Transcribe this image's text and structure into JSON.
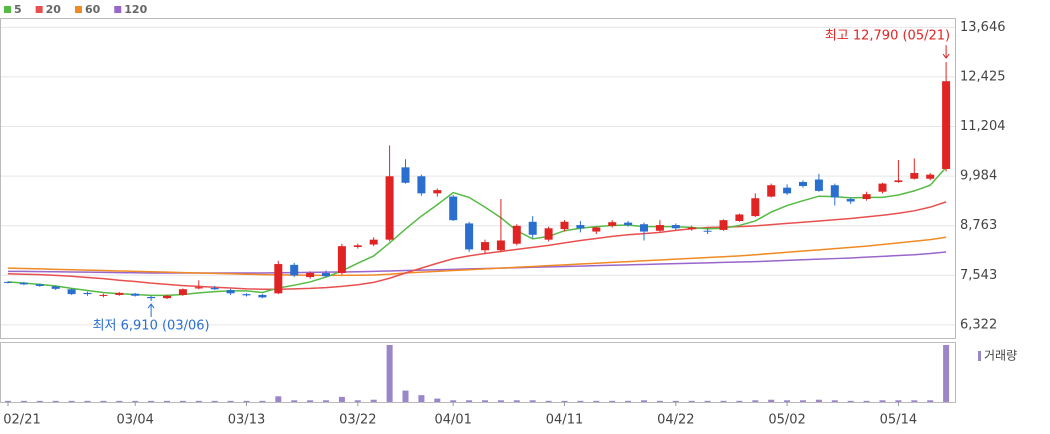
{
  "chart_data": {
    "type": "candlestick",
    "categories": [
      "02/21",
      null,
      null,
      null,
      null,
      null,
      null,
      null,
      "03/04",
      null,
      null,
      null,
      null,
      null,
      null,
      "03/13",
      null,
      null,
      null,
      null,
      null,
      null,
      "03/22",
      null,
      null,
      null,
      null,
      null,
      "04/01",
      null,
      null,
      null,
      null,
      null,
      null,
      "04/11",
      null,
      null,
      null,
      null,
      null,
      null,
      "04/22",
      null,
      null,
      null,
      null,
      null,
      null,
      "05/02",
      null,
      null,
      null,
      null,
      null,
      null,
      "05/14",
      null,
      null,
      null
    ],
    "open": [
      7380,
      7360,
      7320,
      7270,
      7200,
      7110,
      7040,
      7060,
      7090,
      7010,
      6980,
      7060,
      7220,
      7230,
      7180,
      7080,
      7060,
      7100,
      7800,
      7500,
      7600,
      7600,
      8240,
      8300,
      8420,
      10200,
      9980,
      9560,
      9480,
      8820,
      8160,
      8160,
      8320,
      8860,
      8420,
      8680,
      8780,
      8620,
      8760,
      8840,
      8800,
      8640,
      8780,
      8680,
      8640,
      8660,
      8880,
      9000,
      9480,
      9700,
      9840,
      9900,
      9760,
      9420,
      9420,
      9600,
      9840,
      9920,
      9920,
      10160
    ],
    "high": [
      7400,
      7380,
      7340,
      7290,
      7220,
      7140,
      7090,
      7130,
      7110,
      7040,
      7060,
      7220,
      7420,
      7280,
      7210,
      7100,
      7080,
      7900,
      7850,
      7640,
      7660,
      8320,
      8320,
      8480,
      10740,
      10400,
      10020,
      9680,
      9520,
      8860,
      8420,
      9420,
      8800,
      9000,
      8740,
      8900,
      8880,
      8740,
      8900,
      8880,
      8840,
      8900,
      8820,
      8760,
      8700,
      8920,
      9060,
      9560,
      9800,
      9780,
      9880,
      10040,
      9800,
      9460,
      9600,
      9820,
      10380,
      10420,
      10060,
      12790
    ],
    "low": [
      7340,
      7300,
      7260,
      7180,
      7060,
      7040,
      7000,
      7040,
      7020,
      6910,
      6960,
      7040,
      7200,
      7180,
      7060,
      7020,
      6980,
      7080,
      7500,
      7460,
      7500,
      7560,
      8200,
      8260,
      8380,
      9800,
      9500,
      9480,
      8880,
      8120,
      8080,
      8120,
      8280,
      8460,
      8380,
      8620,
      8600,
      8560,
      8720,
      8740,
      8400,
      8620,
      8660,
      8640,
      8560,
      8640,
      8860,
      8980,
      9460,
      9520,
      9700,
      9600,
      9260,
      9300,
      9380,
      9560,
      9820,
      9900,
      9880,
      10100
    ],
    "close": [
      7370,
      7320,
      7280,
      7210,
      7080,
      7080,
      7060,
      7110,
      7040,
      6980,
      7040,
      7200,
      7250,
      7200,
      7100,
      7050,
      7000,
      7820,
      7540,
      7600,
      7520,
      8260,
      8280,
      8420,
      9980,
      9820,
      9560,
      9640,
      8900,
      8180,
      8360,
      8400,
      8760,
      8540,
      8700,
      8860,
      8700,
      8720,
      8850,
      8780,
      8620,
      8780,
      8700,
      8720,
      8620,
      8900,
      9040,
      9440,
      9760,
      9560,
      9740,
      9620,
      9460,
      9360,
      9540,
      9800,
      9880,
      10060,
      10020,
      12320
    ],
    "up_color": "#e02424",
    "down_color": "#2a6fd0",
    "series": [
      {
        "name": "5",
        "color": "#55bb44",
        "values": [
          7380,
          7350,
          7320,
          7280,
          7220,
          7170,
          7120,
          7090,
          7070,
          7050,
          7050,
          7070,
          7110,
          7140,
          7160,
          7160,
          7120,
          7230,
          7300,
          7380,
          7500,
          7650,
          7840,
          8020,
          8340,
          8680,
          9000,
          9280,
          9580,
          9460,
          9220,
          8960,
          8640,
          8440,
          8500,
          8640,
          8700,
          8740,
          8770,
          8780,
          8740,
          8740,
          8740,
          8720,
          8690,
          8700,
          8770,
          8880,
          9100,
          9260,
          9380,
          9490,
          9480,
          9450,
          9460,
          9460,
          9520,
          9620,
          9760,
          10200
        ]
      },
      {
        "name": "20",
        "color": "#e85050",
        "values": [
          7580,
          7570,
          7560,
          7540,
          7520,
          7490,
          7460,
          7420,
          7390,
          7350,
          7320,
          7290,
          7270,
          7250,
          7230,
          7210,
          7200,
          7200,
          7210,
          7220,
          7240,
          7270,
          7310,
          7370,
          7470,
          7600,
          7720,
          7840,
          7950,
          8020,
          8080,
          8130,
          8180,
          8230,
          8280,
          8340,
          8400,
          8450,
          8500,
          8540,
          8570,
          8600,
          8650,
          8690,
          8720,
          8730,
          8740,
          8760,
          8790,
          8820,
          8850,
          8880,
          8910,
          8940,
          8980,
          9020,
          9070,
          9130,
          9220,
          9350
        ]
      },
      {
        "name": "60",
        "color": "#f08a24",
        "values": [
          7720,
          7710,
          7700,
          7690,
          7680,
          7670,
          7660,
          7650,
          7640,
          7630,
          7620,
          7610,
          7600,
          7590,
          7580,
          7570,
          7560,
          7555,
          7550,
          7545,
          7540,
          7540,
          7545,
          7550,
          7570,
          7600,
          7620,
          7640,
          7660,
          7680,
          7700,
          7720,
          7740,
          7760,
          7780,
          7800,
          7820,
          7840,
          7860,
          7880,
          7900,
          7920,
          7940,
          7960,
          7980,
          8000,
          8020,
          8050,
          8080,
          8110,
          8140,
          8170,
          8200,
          8230,
          8260,
          8300,
          8340,
          8380,
          8420,
          8480
        ]
      },
      {
        "name": "120",
        "color": "#9966cc",
        "values": [
          7640,
          7640,
          7635,
          7630,
          7625,
          7620,
          7615,
          7610,
          7605,
          7600,
          7600,
          7600,
          7600,
          7600,
          7600,
          7600,
          7600,
          7605,
          7610,
          7615,
          7620,
          7625,
          7630,
          7640,
          7650,
          7660,
          7670,
          7680,
          7690,
          7700,
          7710,
          7720,
          7730,
          7740,
          7750,
          7760,
          7770,
          7780,
          7790,
          7800,
          7810,
          7820,
          7830,
          7840,
          7850,
          7860,
          7870,
          7880,
          7895,
          7910,
          7925,
          7940,
          7955,
          7970,
          7990,
          8010,
          8030,
          8050,
          8080,
          8116
        ]
      }
    ],
    "ylim": [
      6000,
      13900
    ],
    "yticks": [
      {
        "value": 6322,
        "label": "6,322"
      },
      {
        "value": 7543,
        "label": "7,543"
      },
      {
        "value": 8763,
        "label": "8,763"
      },
      {
        "value": 9984,
        "label": "9,984"
      },
      {
        "value": 11204,
        "label": "11,204"
      },
      {
        "value": 12425,
        "label": "12,425"
      },
      {
        "value": 13646,
        "label": "13,646"
      }
    ],
    "grid": true,
    "annotations": {
      "high": "최고 12,790 (05/21)",
      "low": "최저 6,910 (03/06)"
    },
    "volume": {
      "name": "거래량",
      "color": "#9b86c8",
      "ylim": [
        0,
        100
      ],
      "values": [
        2,
        2,
        2,
        2,
        2,
        2,
        2,
        2,
        2,
        2,
        2,
        2,
        2,
        2,
        2,
        2,
        2,
        10,
        3,
        3,
        3,
        9,
        3,
        4,
        100,
        20,
        12,
        6,
        3,
        3,
        3,
        3,
        3,
        3,
        2,
        2,
        2,
        2,
        2,
        2,
        3,
        2,
        2,
        2,
        2,
        2,
        2,
        3,
        4,
        3,
        3,
        4,
        3,
        2,
        2,
        3,
        3,
        3,
        3,
        100
      ]
    }
  }
}
